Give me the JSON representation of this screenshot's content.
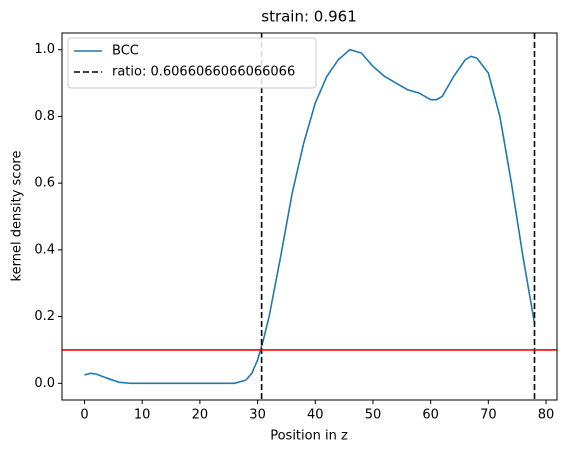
{
  "chart_data": {
    "type": "line",
    "title": "strain: 0.961",
    "x_label": "Position in z",
    "y_label": "kernel density score",
    "xlim": [
      -3.9,
      81.9
    ],
    "ylim": [
      -0.05,
      1.05
    ],
    "xticks": [
      0,
      10,
      20,
      30,
      40,
      50,
      60,
      70,
      80
    ],
    "yticks": [
      {
        "value": 0,
        "label": "0.0"
      },
      {
        "value": 0.2,
        "label": "0.2"
      },
      {
        "value": 0.4,
        "label": "0.4"
      },
      {
        "value": 0.6,
        "label": "0.6"
      },
      {
        "value": 0.8,
        "label": "0.8"
      },
      {
        "value": 1.0,
        "label": "1.0"
      }
    ],
    "series": [
      {
        "name": "BCC",
        "color": "#1f77b4",
        "x": [
          0,
          1,
          2,
          4,
          6,
          8,
          10,
          14,
          18,
          22,
          26,
          28,
          29,
          30,
          31,
          32,
          34,
          36,
          38,
          40,
          42,
          44,
          46,
          48,
          50,
          52,
          54,
          56,
          58,
          60,
          61,
          62,
          64,
          66,
          67,
          68,
          70,
          72,
          74,
          76,
          78
        ],
        "values": [
          0.025,
          0.03,
          0.028,
          0.015,
          0.003,
          0,
          0,
          0,
          0,
          0,
          0,
          0.01,
          0.03,
          0.07,
          0.13,
          0.2,
          0.38,
          0.57,
          0.72,
          0.84,
          0.92,
          0.97,
          1.0,
          0.99,
          0.95,
          0.92,
          0.9,
          0.88,
          0.87,
          0.85,
          0.85,
          0.86,
          0.92,
          0.97,
          0.98,
          0.975,
          0.93,
          0.8,
          0.6,
          0.38,
          0.18
        ]
      }
    ],
    "vlines": {
      "name": "ratio: 0.6066066066066066",
      "color": "#000000",
      "x": [
        30.7,
        78
      ]
    },
    "hline": {
      "y": 0.1,
      "color": "#ff0000"
    }
  }
}
